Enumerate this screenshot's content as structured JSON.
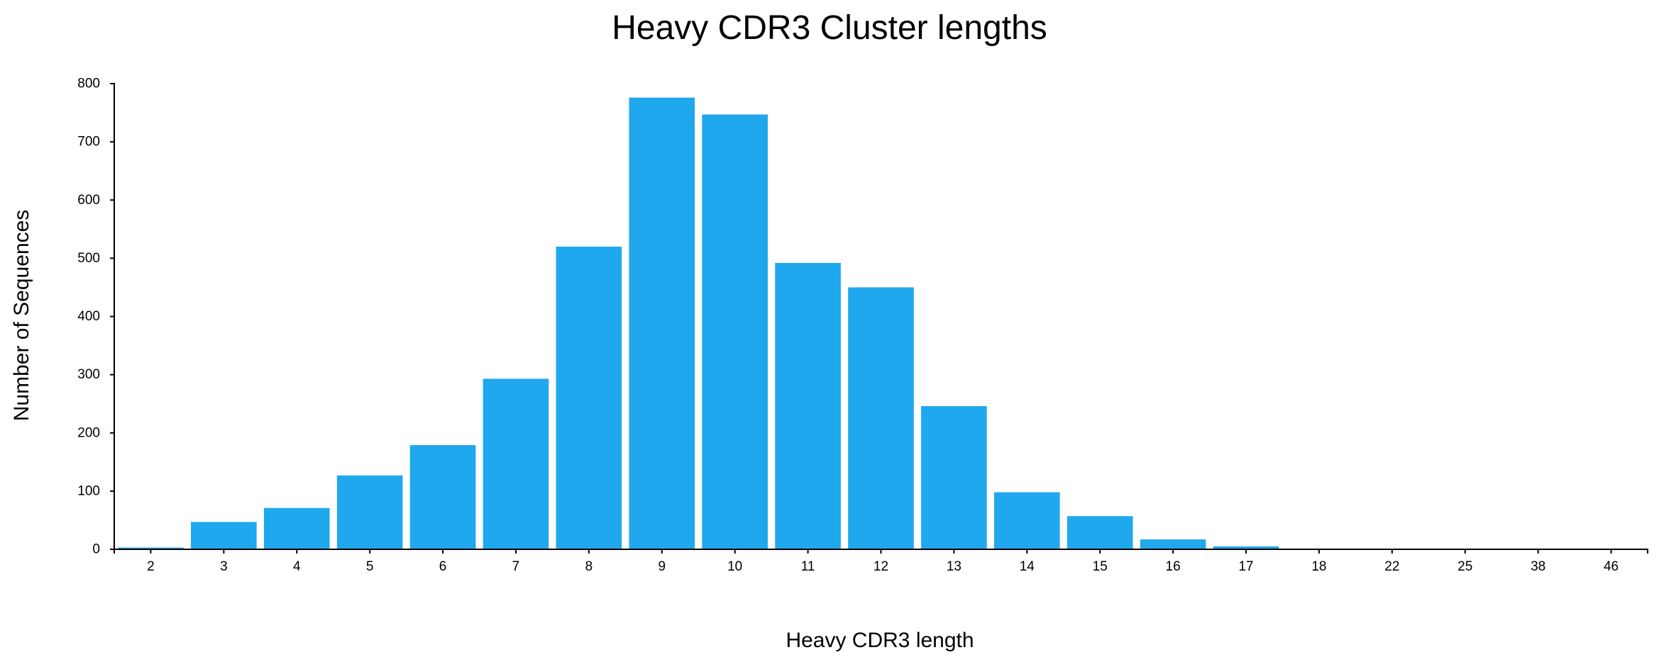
{
  "chart_data": {
    "type": "bar",
    "title": "Heavy CDR3 Cluster lengths",
    "xlabel": "Heavy CDR3 length",
    "ylabel": "Number of Sequences",
    "categories": [
      "2",
      "3",
      "4",
      "5",
      "6",
      "7",
      "8",
      "9",
      "10",
      "11",
      "12",
      "13",
      "14",
      "15",
      "16",
      "17",
      "18",
      "22",
      "25",
      "38",
      "46"
    ],
    "values": [
      3,
      47,
      71,
      127,
      179,
      293,
      520,
      776,
      747,
      492,
      450,
      246,
      98,
      57,
      17,
      5,
      1,
      1,
      1,
      1,
      1
    ],
    "ylim": [
      0,
      800
    ],
    "yticks": [
      0,
      100,
      200,
      300,
      400,
      500,
      600,
      700,
      800
    ],
    "grid": false,
    "legend": "none",
    "colors": {
      "bar": "#20a8ee",
      "axis": "#000000",
      "text": "#000000"
    }
  }
}
